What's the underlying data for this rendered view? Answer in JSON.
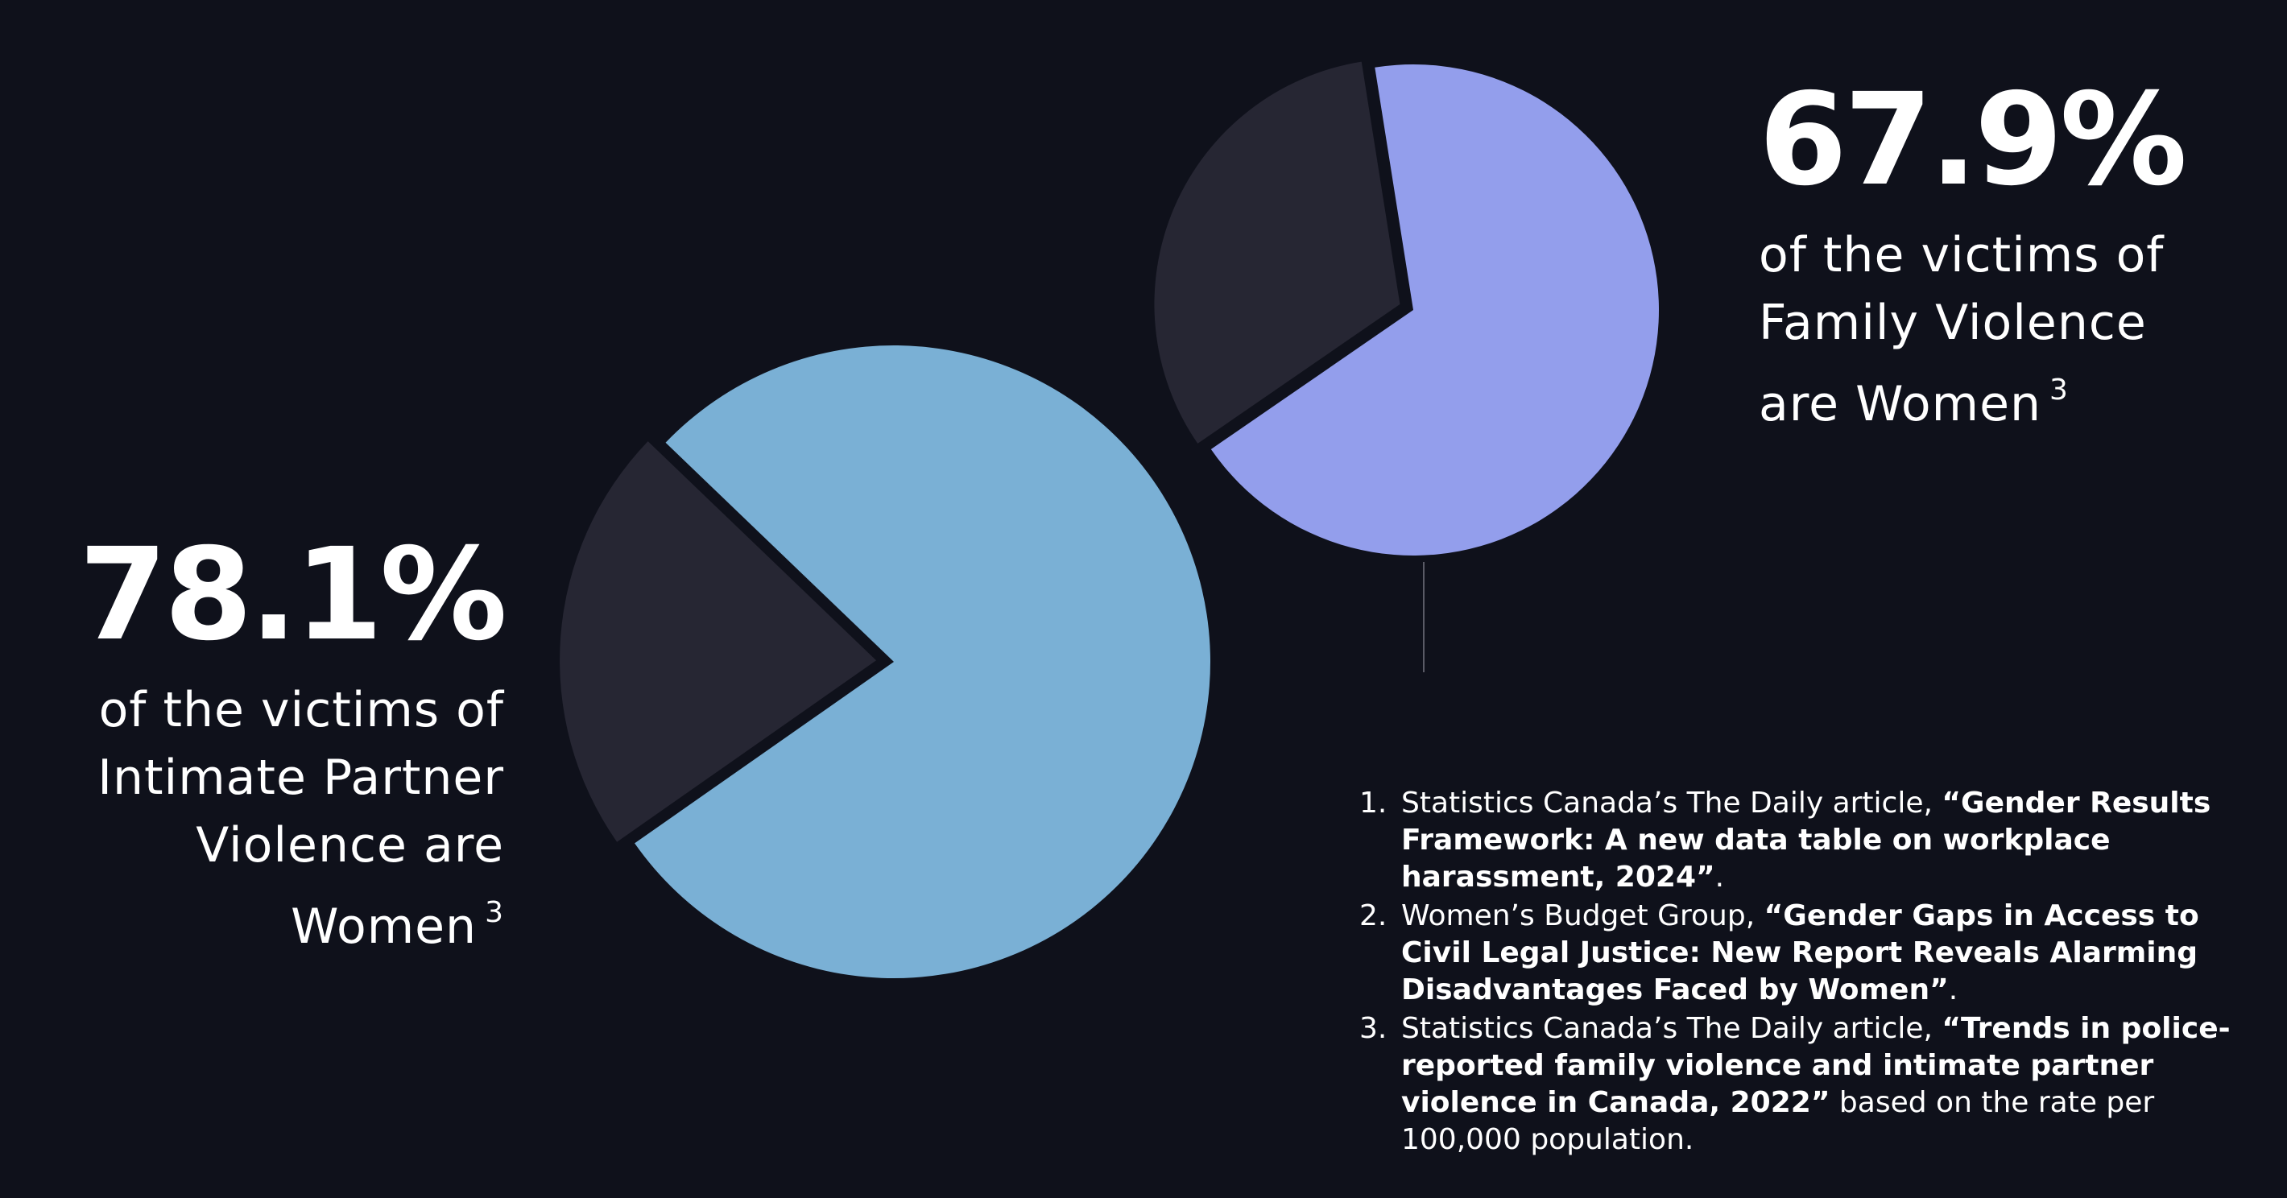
{
  "chart_data": [
    {
      "type": "pie",
      "name": "intimate-partner-violence",
      "title": "",
      "slices": [
        {
          "label": "Women",
          "value": 78.1,
          "color": "#7ab0d5"
        },
        {
          "label": "",
          "value": 21.9,
          "color": "#262633"
        }
      ]
    },
    {
      "type": "pie",
      "name": "family-violence",
      "title": "",
      "slices": [
        {
          "label": "Women",
          "value": 67.9,
          "color": "#939eec"
        },
        {
          "label": "",
          "value": 32.1,
          "color": "#262633"
        }
      ]
    }
  ],
  "stats": {
    "ipv": {
      "value": "78.1%",
      "lines": [
        "of the victims of",
        "Intimate Partner",
        "Violence are",
        "Women"
      ],
      "footnote": "3"
    },
    "fv": {
      "value": "67.9%",
      "lines": [
        "of the victims of",
        "Family Violence",
        "are Women"
      ],
      "footnote": "3"
    }
  },
  "references": [
    {
      "num": "1.",
      "pre": "Statistics Canada’s The Daily article, ",
      "bold": "“Gender Results Framework: A new data table on workplace harassment, 2024”",
      "post": "."
    },
    {
      "num": "2.",
      "pre": "Women’s Budget Group, ",
      "bold": "“Gender Gaps in Access to Civil Legal Justice: New Report Reveals Alarming Disadvantages Faced by Women”",
      "post": "."
    },
    {
      "num": "3.",
      "pre": "Statistics Canada’s The Daily article, ",
      "bold": "“Trends in police-reported family violence and intimate partner violence in Canada, 2022”",
      "post": " based on the rate per 100,000 population."
    }
  ]
}
